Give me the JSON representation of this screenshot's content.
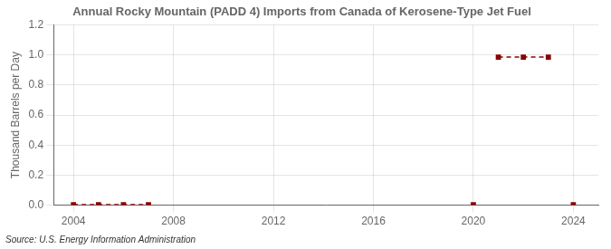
{
  "chart_data": {
    "type": "line",
    "title": "Annual Rocky Mountain (PADD 4) Imports from Canada of Kerosene-Type Jet Fuel",
    "ylabel": "Thousand Barrels per Day",
    "annotations": [
      "Source: U.S. Energy Information Administration"
    ],
    "x": [
      2004,
      2005,
      2006,
      2007,
      2020,
      2021,
      2022,
      2023,
      2024
    ],
    "series": [
      {
        "color": "#8b0000",
        "line_style": "dashed",
        "marker": "square",
        "values": [
          0.003,
          0.003,
          0.003,
          0.003,
          null,
          0.986,
          0.986,
          0.986,
          null
        ]
      },
      {
        "color": "#8b0000",
        "line_style": "none",
        "marker": "square",
        "values": [
          null,
          null,
          null,
          null,
          0.003,
          null,
          null,
          null,
          0.003
        ]
      }
    ],
    "xlim": [
      2003.2,
      2025.0
    ],
    "ylim": [
      0.0,
      1.2
    ],
    "xticks": [
      2004,
      2008,
      2012,
      2016,
      2020,
      2024
    ],
    "yticks": [
      {
        "value": 0.0,
        "label": "0.0"
      },
      0.2,
      0.4,
      0.6,
      0.8,
      {
        "value": 1.0,
        "label": "1.0"
      },
      1.2
    ],
    "grid": true
  }
}
